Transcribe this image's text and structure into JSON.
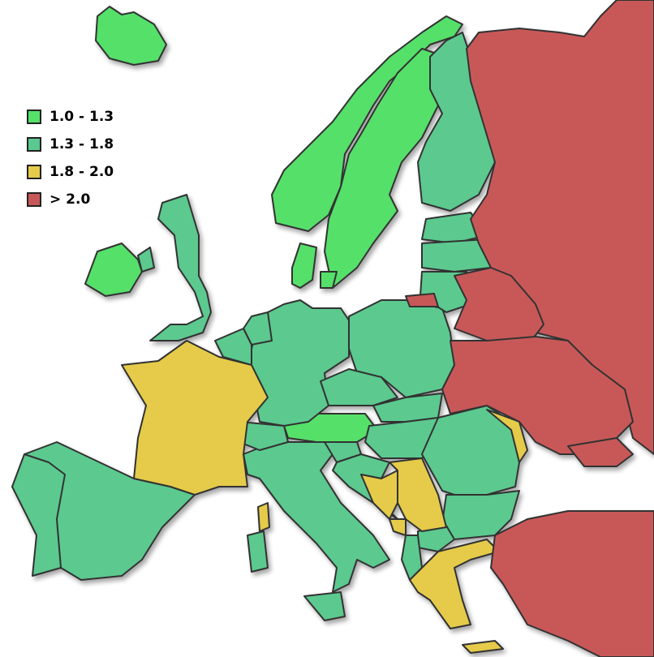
{
  "legend": {
    "items": [
      {
        "label": "1.0 - 1.3",
        "color": "#55E06A"
      },
      {
        "label": "1.3 - 1.8",
        "color": "#5BC98F"
      },
      {
        "label": "1.8 - 2.0",
        "color": "#E5CB4A"
      },
      {
        "label": "> 2.0",
        "color": "#C85858"
      }
    ]
  },
  "map": {
    "border_color": "#333333",
    "region_classes": {
      "iceland": 0,
      "norway": 0,
      "sweden": 0,
      "ireland": 0,
      "denmark": 0,
      "denmark-islands": 0,
      "austria": 0,
      "finland": 1,
      "uk": 1,
      "northern-ireland": 1,
      "spain": 1,
      "portugal": 1,
      "italy": 1,
      "sicily": 1,
      "sardinia": 1,
      "germany": 1,
      "poland": 1,
      "estonia": 1,
      "latvia": 1,
      "lithuania": 1,
      "netherlands": 1,
      "belgium": 1,
      "switzerland": 1,
      "czechia": 1,
      "slovakia": 1,
      "hungary": 1,
      "romania": 1,
      "bulgaria": 1,
      "slovenia": 1,
      "croatia": 1,
      "north-macedonia": 1,
      "albania": 1,
      "france": 2,
      "corsica": 2,
      "moldova": 2,
      "bosnia": 2,
      "serbia": 2,
      "montenegro": 2,
      "greece": 2,
      "cyprus": 2,
      "russia": 3,
      "kaliningrad": 3,
      "belarus": 3,
      "ukraine": 3,
      "turkey": 3,
      "georgia": 3
    }
  }
}
